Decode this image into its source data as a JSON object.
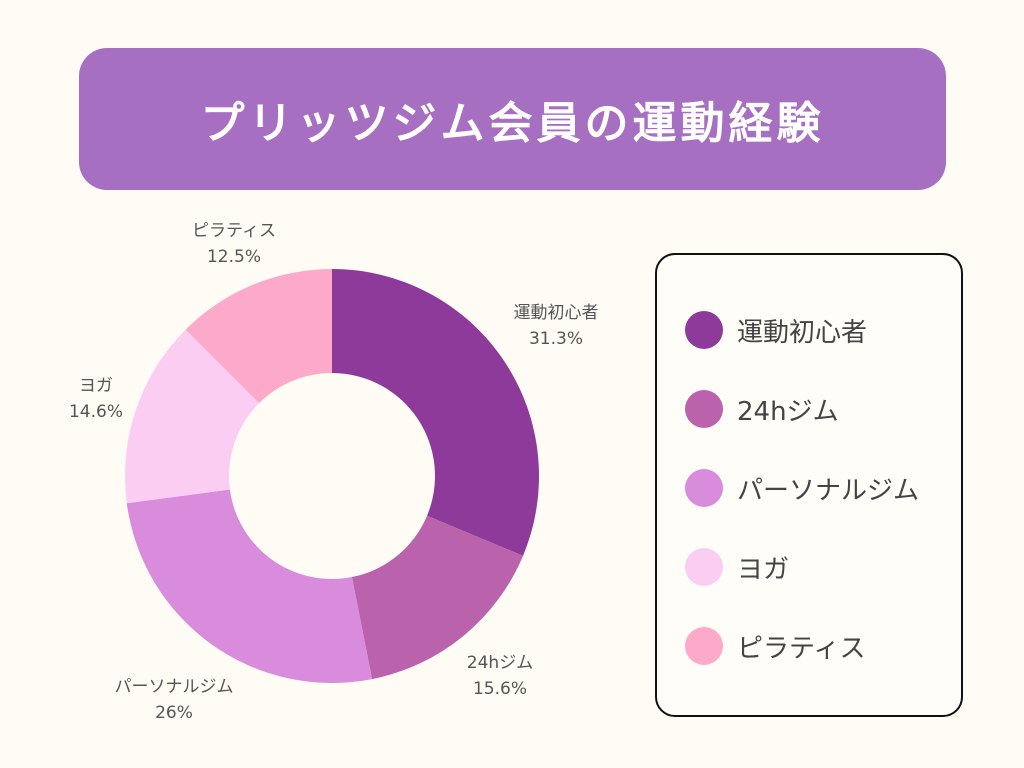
{
  "title": "プリッツジム会員の運動経験",
  "chart_data": {
    "type": "pie",
    "donut": true,
    "title": "プリッツジム会員の運動経験",
    "categories": [
      "運動初心者",
      "24hジム",
      "パーソナルジム",
      "ヨガ",
      "ピラティス"
    ],
    "values": [
      31.3,
      15.6,
      26,
      14.6,
      12.5
    ],
    "value_labels": [
      "31.3%",
      "15.6%",
      "26%",
      "14.6%",
      "12.5%"
    ],
    "colors": [
      "#8e3a9a",
      "#bb62ad",
      "#d98bdc",
      "#fbcdf2",
      "#fda9c9"
    ],
    "legend": "right"
  },
  "colors": {
    "background": "#fefcf5",
    "banner": "#a76fc2"
  }
}
